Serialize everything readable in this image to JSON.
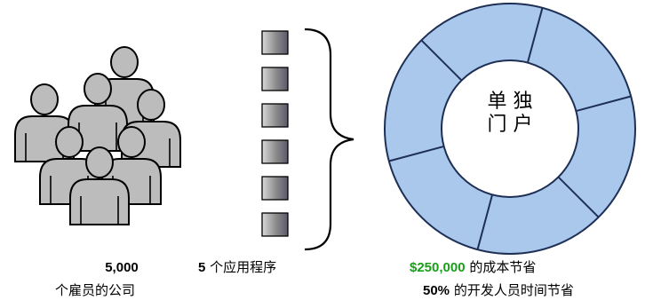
{
  "employees": {
    "count": "5,000",
    "label": "个雇员的公司"
  },
  "applications": {
    "count": "5",
    "label": "个应用程序",
    "block_count": 6
  },
  "portal": {
    "center_text_line1": "单 独",
    "center_text_line2": "门 户",
    "segment_count": 6
  },
  "savings": {
    "amount": "$250,000",
    "label": "的成本节省"
  },
  "time_savings": {
    "percent": "50%",
    "label": "的开发人员时间节省"
  },
  "colors": {
    "ring_fill": "#a9c8ec",
    "ring_stroke": "#1e2f55",
    "people_fill": "#bcbcbc",
    "people_stroke": "#000000",
    "accent_green": "#1a9e1a"
  }
}
